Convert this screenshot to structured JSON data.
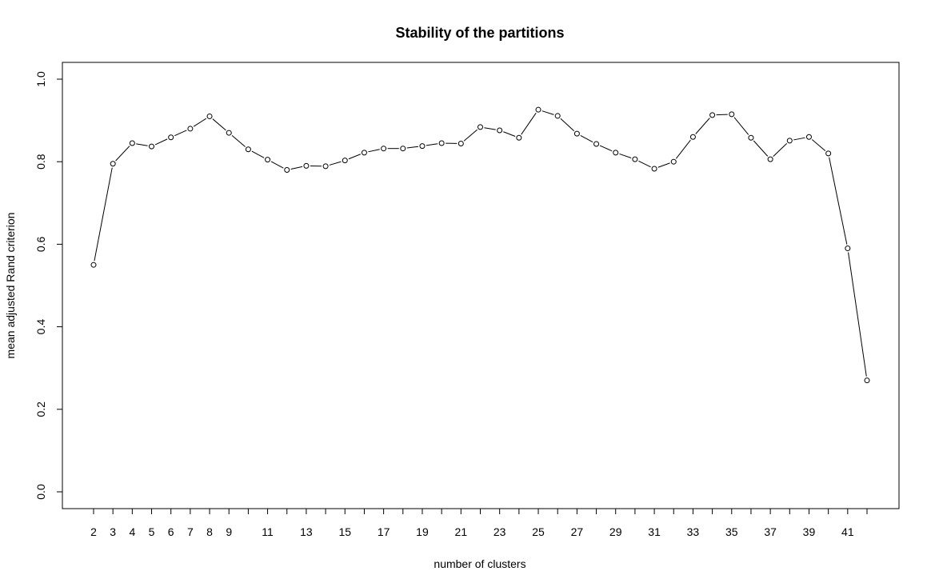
{
  "chart_data": {
    "type": "line",
    "title": "Stability of the partitions",
    "xlabel": "number of clusters",
    "ylabel": "mean adjusted Rand criterion",
    "xlim": [
      2,
      42
    ],
    "ylim": [
      0.0,
      1.0
    ],
    "grid": false,
    "legend": "none",
    "marker": "open-circle",
    "x_ticks": [
      2,
      3,
      4,
      5,
      6,
      7,
      8,
      9,
      11,
      13,
      15,
      17,
      19,
      21,
      23,
      25,
      27,
      29,
      31,
      33,
      35,
      37,
      39,
      41
    ],
    "x_tick_marks": [
      2,
      3,
      4,
      5,
      6,
      7,
      8,
      9,
      10,
      11,
      12,
      13,
      14,
      15,
      16,
      17,
      18,
      19,
      20,
      21,
      22,
      23,
      24,
      25,
      26,
      27,
      28,
      29,
      30,
      31,
      32,
      33,
      34,
      35,
      36,
      37,
      38,
      39,
      40,
      41,
      42
    ],
    "y_ticks": [
      "0.0",
      "0.2",
      "0.4",
      "0.6",
      "0.8",
      "1.0"
    ],
    "series": [
      {
        "x": [
          2,
          3,
          4,
          5,
          6,
          7,
          8,
          9,
          10,
          11,
          12,
          13,
          14,
          15,
          16,
          17,
          18,
          19,
          20,
          21,
          22,
          23,
          24,
          25,
          26,
          27,
          28,
          29,
          30,
          31,
          32,
          33,
          34,
          35,
          36,
          37,
          38,
          39,
          40,
          41,
          42
        ],
        "values": [
          0.55,
          0.795,
          0.845,
          0.837,
          0.859,
          0.88,
          0.91,
          0.87,
          0.83,
          0.805,
          0.78,
          0.79,
          0.789,
          0.803,
          0.822,
          0.832,
          0.832,
          0.838,
          0.845,
          0.844,
          0.884,
          0.876,
          0.858,
          0.926,
          0.911,
          0.868,
          0.843,
          0.822,
          0.806,
          0.783,
          0.8,
          0.86,
          0.913,
          0.915,
          0.858,
          0.806,
          0.851,
          0.86,
          0.82,
          0.59,
          0.27
        ]
      }
    ]
  }
}
